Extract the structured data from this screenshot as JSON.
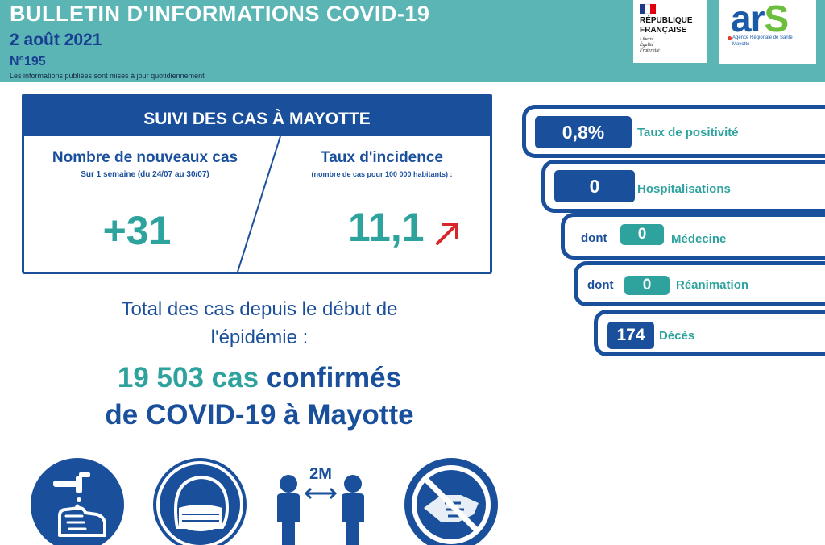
{
  "header": {
    "title": "BULLETIN D'INFORMATIONS COVID-19",
    "date": "2 août 2021",
    "number": "N°195",
    "note": "Les informations publiées sont mises à jour quotidiennement"
  },
  "logos": {
    "rf_line1": "RÉPUBLIQUE",
    "rf_line2": "FRANÇAISE",
    "rf_motto1": "Liberté",
    "rf_motto2": "Égalité",
    "rf_motto3": "Fraternité",
    "ars_word_a": "ar",
    "ars_word_s": "S",
    "ars_line1": "Agence Régionale de Santé",
    "ars_line2": "Mayotte"
  },
  "suivi": {
    "heading": "SUIVI DES CAS À MAYOTTE",
    "new_cases_label": "Nombre de nouveaux cas",
    "new_cases_sub": "Sur 1 semaine (du 24/07 au 30/07)",
    "new_cases_value": "+31",
    "incidence_label": "Taux d'incidence",
    "incidence_sub": "(nombre de cas pour 100 000 habitants) :",
    "incidence_value": "11,1",
    "incidence_trend": "up-right-arrow"
  },
  "total": {
    "line1": "Total des cas depuis le début de",
    "line2": "l'épidémie :",
    "count": "19 503 cas",
    "suffix": " confirmés",
    "line4": "de COVID-19 à Mayotte"
  },
  "stats": {
    "positivity_value": "0,8%",
    "positivity_label": "Taux de positivité",
    "hosp_value": "0",
    "hosp_label": "Hospitalisations",
    "med_prefix": "dont",
    "med_value": "0",
    "med_label": "Médecine",
    "rea_prefix": "dont",
    "rea_value": "0",
    "rea_label": "Réanimation",
    "deaths_value": "174",
    "deaths_label": "Décès"
  },
  "colors": {
    "header_teal": "#5ab5b4",
    "navy": "#1a4f9c",
    "teal": "#2ea39e",
    "arrow_red": "#d8262b"
  },
  "icons": [
    "hand-washing-icon",
    "face-mask-icon",
    "social-distance-2m-icon",
    "no-handshake-icon"
  ]
}
